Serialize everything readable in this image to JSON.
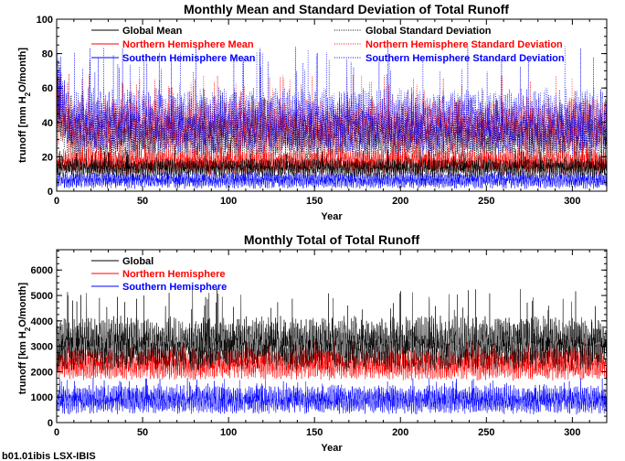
{
  "footer_label": "b01.01ibis LSX-IBIS",
  "colors": {
    "global": "#000000",
    "north": "#ff0000",
    "south": "#0000ff"
  },
  "chart_data": [
    {
      "type": "line",
      "title": "Monthly Mean and Standard Deviation of Total Runoff",
      "xlabel": "Year",
      "ylabel": "trunoff [mm H2O/month]",
      "ylabel_main": "trunoff [mm H",
      "ylabel_sub": "2",
      "ylabel_tail": "O/month]",
      "xlim": [
        0,
        320
      ],
      "ylim": [
        0,
        100
      ],
      "xticks": [
        "0",
        "50",
        "100",
        "150",
        "200",
        "250",
        "300"
      ],
      "xtick_values": [
        0,
        50,
        100,
        150,
        200,
        250,
        300
      ],
      "yticks": [
        "0",
        "20",
        "40",
        "60",
        "80",
        "100"
      ],
      "ytick_values": [
        0,
        20,
        40,
        60,
        80,
        100
      ],
      "series": [
        {
          "name": "Global Mean",
          "style": "solid",
          "color": "#000000",
          "typical": 13.5,
          "amplitude": 4.5,
          "spike_max": 24
        },
        {
          "name": "Northern Hemisphere Mean",
          "style": "solid",
          "color": "#ff0000",
          "typical": 17,
          "amplitude": 6,
          "spike_max": 30
        },
        {
          "name": "Southern Hemisphere Mean",
          "style": "solid",
          "color": "#0000ff",
          "typical": 6.5,
          "amplitude": 4,
          "spike_max": 11
        },
        {
          "name": "Global Standard Deviation",
          "style": "dotted",
          "color": "#000000",
          "typical": 32,
          "amplitude": 12,
          "spike_max": 60
        },
        {
          "name": "Northern Hemisphere Standard Deviation",
          "style": "dotted",
          "color": "#ff0000",
          "typical": 38,
          "amplitude": 13,
          "spike_max": 68
        },
        {
          "name": "Southern Hemisphere Standard Deviation",
          "style": "dotted",
          "color": "#0000ff",
          "typical": 40,
          "amplitude": 16,
          "spike_max": 85
        }
      ],
      "legend_placement": "top"
    },
    {
      "type": "line",
      "title": "Monthly Total of Total Runoff",
      "xlabel": "Year",
      "ylabel": "trunoff [km H2O/month]",
      "ylabel_main": "trunoff [km H",
      "ylabel_sub": "2",
      "ylabel_tail": "O/month]",
      "xlim": [
        0,
        320
      ],
      "ylim": [
        0,
        6800
      ],
      "xticks": [
        "0",
        "50",
        "100",
        "150",
        "200",
        "250",
        "300"
      ],
      "xtick_values": [
        0,
        50,
        100,
        150,
        200,
        250,
        300
      ],
      "yticks": [
        "0",
        "1000",
        "2000",
        "3000",
        "4000",
        "5000",
        "6000"
      ],
      "ytick_values": [
        0,
        1000,
        2000,
        3000,
        4000,
        5000,
        6000
      ],
      "series": [
        {
          "name": "Global",
          "style": "solid",
          "color": "#000000",
          "typical": 3100,
          "amplitude": 850,
          "spike_max": 5300
        },
        {
          "name": "Northern Hemisphere",
          "style": "solid",
          "color": "#ff0000",
          "typical": 2300,
          "amplitude": 500,
          "spike_max": 3300
        },
        {
          "name": "Southern Hemisphere",
          "style": "solid",
          "color": "#0000ff",
          "typical": 900,
          "amplitude": 450,
          "spike_max": 1800
        }
      ],
      "legend_placement": "top-left"
    }
  ]
}
